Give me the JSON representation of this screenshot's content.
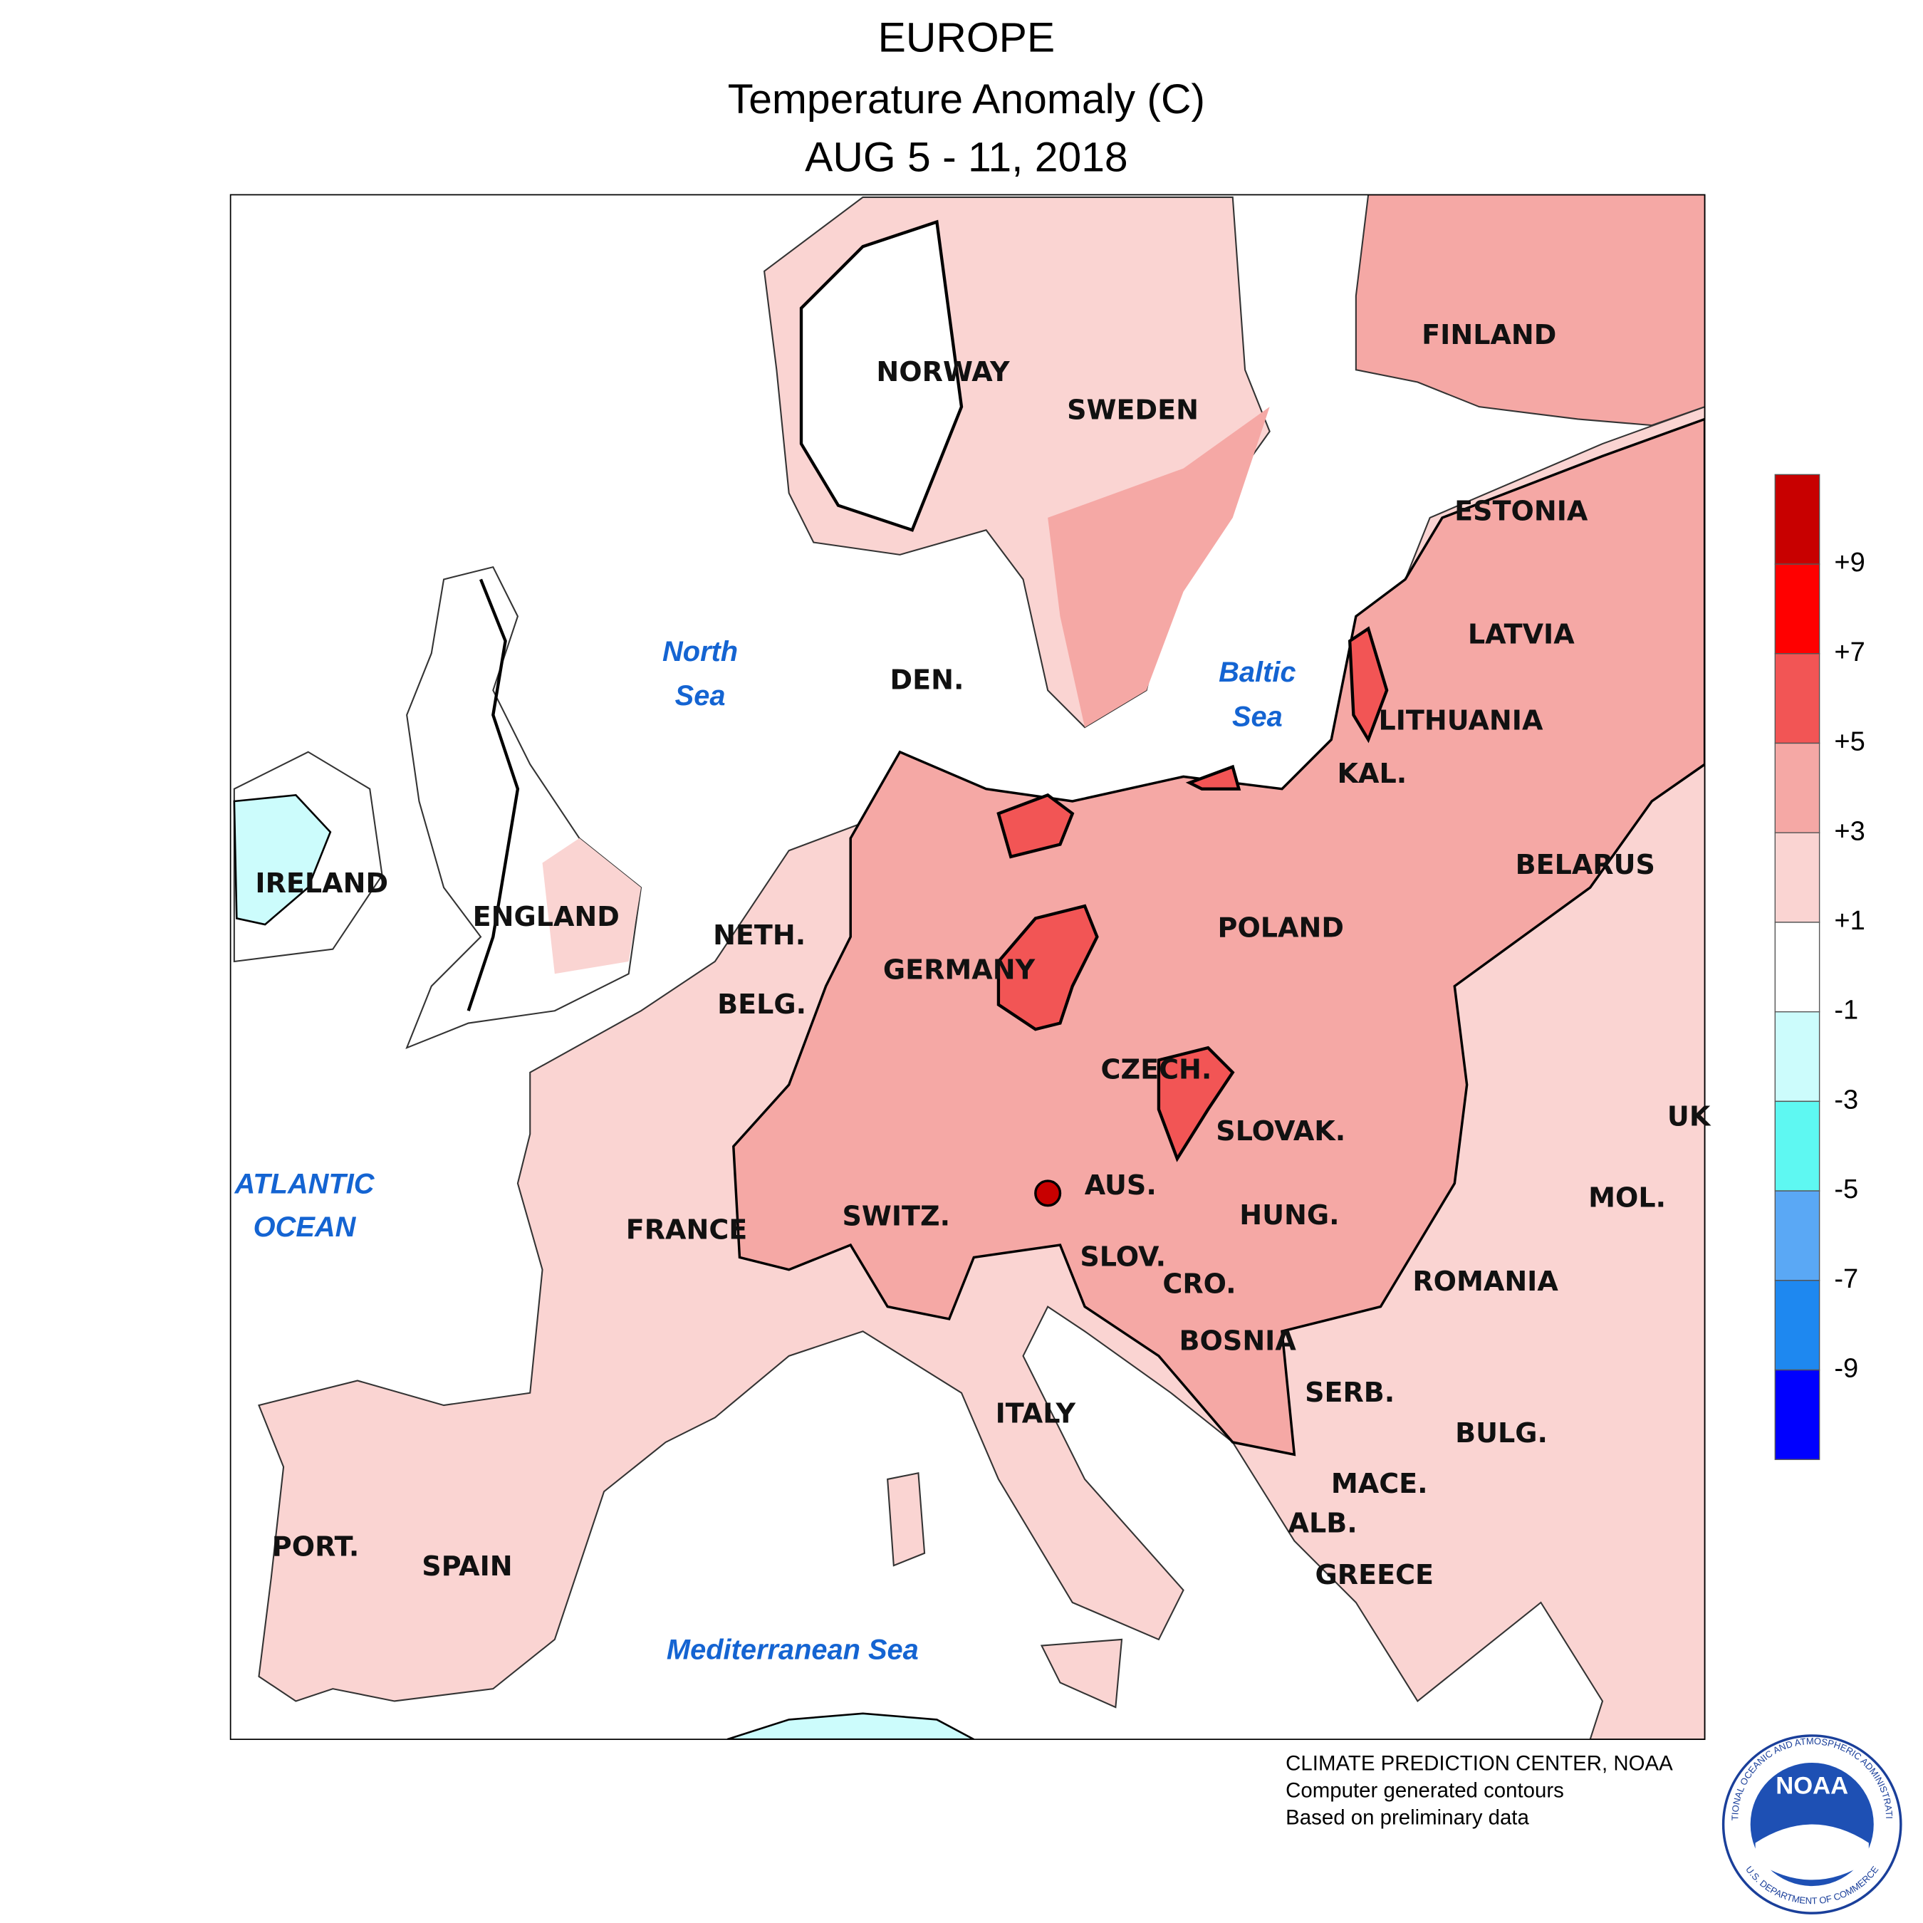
{
  "header": {
    "title": "EUROPE",
    "subtitle": "Temperature Anomaly (C)",
    "date": "AUG 5 - 11, 2018"
  },
  "map": {
    "countries": [
      "NORWAY",
      "SWEDEN",
      "FINLAND",
      "ESTONIA",
      "LATVIA",
      "LITHUANIA",
      "KAL.",
      "BELARUS",
      "DEN.",
      "POLAND",
      "GERMANY",
      "NETH.",
      "BELG.",
      "IRELAND",
      "ENGLAND",
      "CZECH.",
      "SLOVAK.",
      "AUS.",
      "SWITZ.",
      "FRANCE",
      "HUNG.",
      "SLOV.",
      "CRO.",
      "ROMANIA",
      "MOL.",
      "UK",
      "BOSNIA",
      "SERB.",
      "ITALY",
      "BULG.",
      "MACE.",
      "ALB.",
      "GREECE",
      "PORT.",
      "SPAIN"
    ],
    "seas": [
      "North",
      "Sea",
      "Baltic",
      "Sea",
      "ATLANTIC",
      "OCEAN",
      "Mediterranean Sea"
    ]
  },
  "legend": {
    "colors": [
      "#c80000",
      "#ff0000",
      "#f25555",
      "#f5a8a5",
      "#fad4d2",
      "#ffffff",
      "#ccfcfc",
      "#5ef8f2",
      "#5aa8f5",
      "#1e88f0",
      "#0000ff"
    ],
    "labels": [
      "+9",
      "+7",
      "+5",
      "+3",
      "+1",
      "-1",
      "-3",
      "-5",
      "-7",
      "-9"
    ]
  },
  "credits": [
    "CLIMATE PREDICTION CENTER, NOAA",
    "Computer generated contours",
    "Based on preliminary data"
  ],
  "logo": {
    "text": "NOAA",
    "ring_top": "NATIONAL OCEANIC AND ATMOSPHERIC ADMINISTRATION",
    "ring_bottom": "U.S. DEPARTMENT OF COMMERCE"
  }
}
